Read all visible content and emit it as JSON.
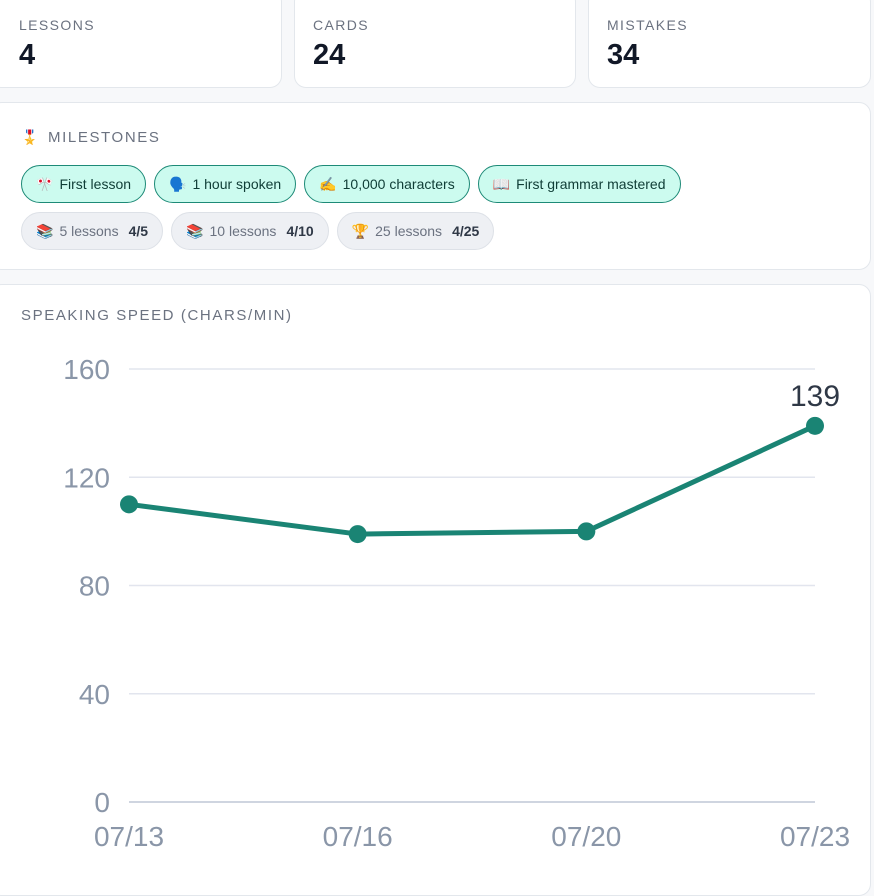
{
  "stats": [
    {
      "label": "LESSONS",
      "value": "4"
    },
    {
      "label": "CARDS",
      "value": "24"
    },
    {
      "label": "MISTAKES",
      "value": "34"
    }
  ],
  "milestones": {
    "icon": "🎖️",
    "title": "MILESTONES",
    "achieved": [
      {
        "icon": "🎌",
        "label": "First lesson"
      },
      {
        "icon": "🗣️",
        "label": "1 hour spoken"
      },
      {
        "icon": "✍️",
        "label": "10,000 characters"
      },
      {
        "icon": "📖",
        "label": "First grammar mastered"
      }
    ],
    "progress": [
      {
        "icon": "📚",
        "label": "5 lessons",
        "count": "4/5"
      },
      {
        "icon": "📚",
        "label": "10 lessons",
        "count": "4/10"
      },
      {
        "icon": "🏆",
        "label": "25 lessons",
        "count": "4/25"
      }
    ]
  },
  "speed_section": {
    "title": "SPEAKING SPEED (CHARS/MIN)"
  },
  "colors": {
    "accent": "#1a8474",
    "chip_bg": "#ccfbef",
    "grid": "#e2e5ee",
    "axis_text": "#8a96a8"
  },
  "chart_data": {
    "type": "line",
    "categories": [
      "07/13",
      "07/16",
      "07/20",
      "07/23"
    ],
    "values": [
      110,
      99,
      100,
      139
    ],
    "ylim": [
      0,
      160
    ],
    "yticks": [
      0,
      40,
      80,
      120,
      160
    ],
    "data_labels": [
      {
        "index": 3,
        "text": "139"
      }
    ],
    "grid": true
  }
}
